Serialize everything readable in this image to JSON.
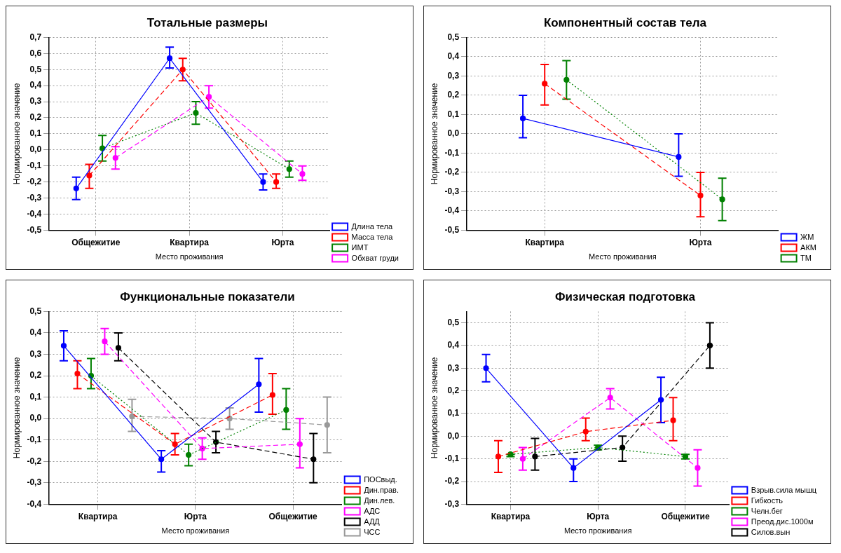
{
  "chart_data": [
    {
      "type": "line",
      "title": "Тотальные размеры",
      "xlabel": "Место проживания",
      "ylabel": "Нормированное значение",
      "categories": [
        "Общежитие",
        "Квартира",
        "Юрта"
      ],
      "ylim": [
        -0.5,
        0.7
      ],
      "yticks": [
        {
          "value": -0.5,
          "label": "-0,5"
        },
        {
          "value": -0.4,
          "label": "-0,4"
        },
        {
          "value": -0.3,
          "label": "-0,3"
        },
        {
          "value": -0.2,
          "label": "-0,2"
        },
        {
          "value": -0.1,
          "label": "-0,1"
        },
        {
          "value": 0,
          "label": "0,0"
        },
        {
          "value": 0.1,
          "label": "0,1"
        },
        {
          "value": 0.2,
          "label": "0,2"
        },
        {
          "value": 0.3,
          "label": "0,3"
        },
        {
          "value": 0.4,
          "label": "0,4"
        },
        {
          "value": 0.5,
          "label": "0,5"
        },
        {
          "value": 0.6,
          "label": "0,6"
        },
        {
          "value": 0.7,
          "label": "0,7"
        }
      ],
      "grid": true,
      "legend": "bottom right",
      "marker": "circle",
      "series": [
        {
          "name": "Длина тела",
          "color": "#0000ff",
          "line_style": "solid",
          "values": [
            -0.24,
            0.57,
            -0.2
          ],
          "errors": [
            [
              -0.31,
              -0.17
            ],
            [
              0.51,
              0.64
            ],
            [
              -0.25,
              -0.15
            ]
          ]
        },
        {
          "name": "Масса тела",
          "color": "#ff0000",
          "line_style": "dashed",
          "values": [
            -0.16,
            0.5,
            -0.2
          ],
          "errors": [
            [
              -0.24,
              -0.09
            ],
            [
              0.43,
              0.57
            ],
            [
              -0.24,
              -0.15
            ]
          ]
        },
        {
          "name": "ИМТ",
          "color": "#008000",
          "line_style": "dotted",
          "values": [
            0.01,
            0.23,
            -0.12
          ],
          "errors": [
            [
              -0.07,
              0.09
            ],
            [
              0.16,
              0.3
            ],
            [
              -0.17,
              -0.07
            ]
          ]
        },
        {
          "name": "Обхват груди",
          "color": "#ff00ff",
          "line_style": "dashed",
          "values": [
            -0.05,
            0.33,
            -0.15
          ],
          "errors": [
            [
              -0.12,
              0.02
            ],
            [
              0.26,
              0.4
            ],
            [
              -0.19,
              -0.1
            ]
          ]
        }
      ]
    },
    {
      "type": "line",
      "title": "Компонентный состав тела",
      "xlabel": "Место проживания",
      "ylabel": "Нормированное значение",
      "categories": [
        "Квартира",
        "Юрта"
      ],
      "ylim": [
        -0.5,
        0.5
      ],
      "yticks": [
        {
          "value": -0.5,
          "label": "-0,5"
        },
        {
          "value": -0.4,
          "label": "-0,4"
        },
        {
          "value": -0.3,
          "label": "-0,3"
        },
        {
          "value": -0.2,
          "label": "-0,2"
        },
        {
          "value": -0.1,
          "label": "-0,1"
        },
        {
          "value": 0,
          "label": "0,0"
        },
        {
          "value": 0.1,
          "label": "0,1"
        },
        {
          "value": 0.2,
          "label": "0,2"
        },
        {
          "value": 0.3,
          "label": "0,3"
        },
        {
          "value": 0.4,
          "label": "0,4"
        },
        {
          "value": 0.5,
          "label": "0,5"
        }
      ],
      "grid": true,
      "legend": "bottom right",
      "marker": "circle",
      "series": [
        {
          "name": "ЖМ",
          "color": "#0000ff",
          "line_style": "solid",
          "values": [
            0.08,
            -0.12
          ],
          "errors": [
            [
              -0.02,
              0.2
            ],
            [
              -0.22,
              0.0
            ]
          ]
        },
        {
          "name": "АКМ",
          "color": "#ff0000",
          "line_style": "dashed",
          "values": [
            0.26,
            -0.32
          ],
          "errors": [
            [
              0.15,
              0.36
            ],
            [
              -0.43,
              -0.2
            ]
          ]
        },
        {
          "name": "ТМ",
          "color": "#008000",
          "line_style": "dotted",
          "values": [
            0.28,
            -0.34
          ],
          "errors": [
            [
              0.18,
              0.38
            ],
            [
              -0.45,
              -0.23
            ]
          ]
        }
      ]
    },
    {
      "type": "line",
      "title": "Функциональные показатели",
      "xlabel": "Место проживания",
      "ylabel": "Нормированное значение",
      "categories": [
        "Квартира",
        "Юрта",
        "Общежитие"
      ],
      "ylim": [
        -0.4,
        0.5
      ],
      "yticks": [
        {
          "value": -0.4,
          "label": "-0,4"
        },
        {
          "value": -0.3,
          "label": "-0,3"
        },
        {
          "value": -0.2,
          "label": "-0,2"
        },
        {
          "value": -0.1,
          "label": "-0,1"
        },
        {
          "value": 0,
          "label": "0,0"
        },
        {
          "value": 0.1,
          "label": "0,1"
        },
        {
          "value": 0.2,
          "label": "0,2"
        },
        {
          "value": 0.3,
          "label": "0,3"
        },
        {
          "value": 0.4,
          "label": "0,4"
        },
        {
          "value": 0.5,
          "label": "0,5"
        }
      ],
      "grid": true,
      "legend": "bottom right",
      "marker": "circle",
      "series": [
        {
          "name": "ПОСвыд.",
          "color": "#0000ff",
          "line_style": "solid",
          "values": [
            0.34,
            -0.19,
            0.16
          ],
          "errors": [
            [
              0.27,
              0.41
            ],
            [
              -0.25,
              -0.15
            ],
            [
              0.03,
              0.28
            ]
          ]
        },
        {
          "name": "Дин.прав.",
          "color": "#ff0000",
          "line_style": "dashed",
          "values": [
            0.21,
            -0.12,
            0.11
          ],
          "errors": [
            [
              0.14,
              0.27
            ],
            [
              -0.17,
              -0.07
            ],
            [
              0.02,
              0.21
            ]
          ]
        },
        {
          "name": "Дин.лев.",
          "color": "#008000",
          "line_style": "dotted",
          "values": [
            0.2,
            -0.17,
            0.04
          ],
          "errors": [
            [
              0.14,
              0.28
            ],
            [
              -0.22,
              -0.12
            ],
            [
              -0.05,
              0.14
            ]
          ]
        },
        {
          "name": "АДС",
          "color": "#ff00ff",
          "line_style": "dashed",
          "values": [
            0.36,
            -0.14,
            -0.12
          ],
          "errors": [
            [
              0.3,
              0.42
            ],
            [
              -0.19,
              -0.09
            ],
            [
              -0.23,
              0.0
            ]
          ]
        },
        {
          "name": "АДД",
          "color": "#000000",
          "line_style": "dashed",
          "values": [
            0.33,
            -0.11,
            -0.19
          ],
          "errors": [
            [
              0.27,
              0.4
            ],
            [
              -0.16,
              -0.06
            ],
            [
              -0.3,
              -0.07
            ]
          ]
        },
        {
          "name": "ЧСС",
          "color": "#999999",
          "line_style": "dashed",
          "values": [
            0.01,
            0.0,
            -0.03
          ],
          "errors": [
            [
              -0.06,
              0.09
            ],
            [
              -0.05,
              0.05
            ],
            [
              -0.16,
              0.1
            ]
          ]
        }
      ]
    },
    {
      "type": "line",
      "title": "Физическая подготовка",
      "xlabel": "Место проживания",
      "ylabel": "Нормированное значение",
      "categories": [
        "Квартира",
        "Юрта",
        "Общежитие"
      ],
      "ylim": [
        -0.3,
        0.55
      ],
      "yticks": [
        {
          "value": -0.3,
          "label": "-0,3"
        },
        {
          "value": -0.2,
          "label": "-0,2"
        },
        {
          "value": -0.1,
          "label": "-0,1"
        },
        {
          "value": 0,
          "label": "0,0"
        },
        {
          "value": 0.1,
          "label": "0,1"
        },
        {
          "value": 0.2,
          "label": "0,2"
        },
        {
          "value": 0.3,
          "label": "0,3"
        },
        {
          "value": 0.4,
          "label": "0,4"
        },
        {
          "value": 0.5,
          "label": "0,5"
        }
      ],
      "grid": true,
      "legend": "bottom right",
      "marker": "circle",
      "series": [
        {
          "name": "Взрыв.сила мышц",
          "color": "#0000ff",
          "line_style": "solid",
          "values": [
            0.3,
            -0.14,
            0.16
          ],
          "errors": [
            [
              0.24,
              0.36
            ],
            [
              -0.2,
              -0.1
            ],
            [
              0.06,
              0.26
            ]
          ]
        },
        {
          "name": "Гибкость",
          "color": "#ff0000",
          "line_style": "dashed",
          "values": [
            -0.09,
            0.02,
            0.07
          ],
          "errors": [
            [
              -0.16,
              -0.02
            ],
            [
              -0.02,
              0.08
            ],
            [
              -0.02,
              0.17
            ]
          ]
        },
        {
          "name": "Челн.бег",
          "color": "#008000",
          "line_style": "dotted",
          "values": [
            -0.08,
            -0.05,
            -0.09
          ],
          "errors": [
            [
              -0.09,
              -0.08
            ],
            [
              -0.06,
              -0.04
            ],
            [
              -0.1,
              -0.08
            ]
          ]
        },
        {
          "name": "Преод.дис.1000м",
          "color": "#ff00ff",
          "line_style": "dashed",
          "values": [
            -0.1,
            0.17,
            -0.14
          ],
          "errors": [
            [
              -0.15,
              -0.05
            ],
            [
              0.12,
              0.21
            ],
            [
              -0.22,
              -0.06
            ]
          ]
        },
        {
          "name": "Силов.вын",
          "color": "#000000",
          "line_style": "dashed",
          "values": [
            -0.09,
            -0.05,
            0.4
          ],
          "errors": [
            [
              -0.15,
              -0.01
            ],
            [
              -0.11,
              0.0
            ],
            [
              0.3,
              0.5
            ]
          ]
        }
      ]
    }
  ]
}
